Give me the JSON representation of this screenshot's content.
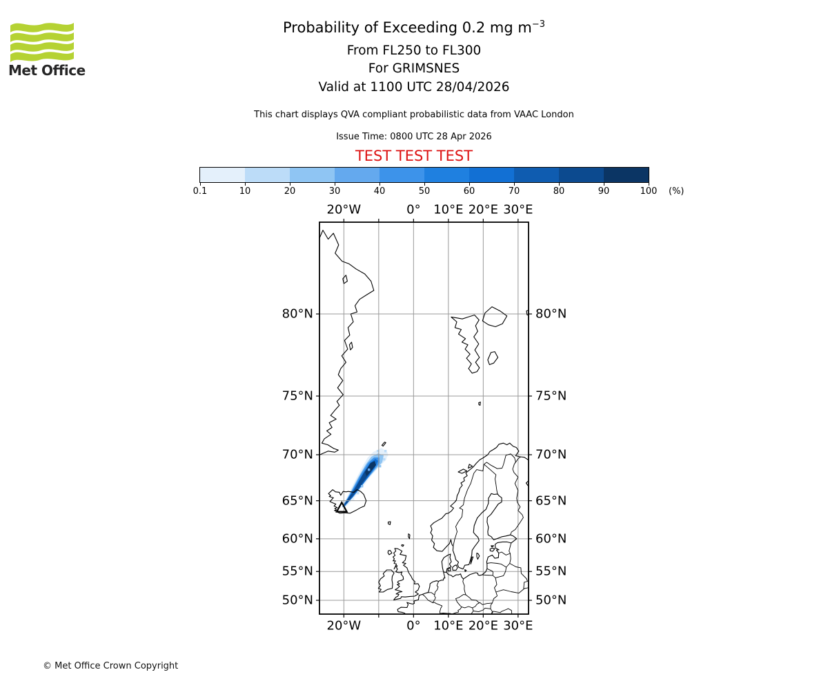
{
  "logo": {
    "brand": "Met Office",
    "green": "#b5d233",
    "text_color": "#262626"
  },
  "header": {
    "title_main": "Probability of Exceeding 0.2 mg m",
    "title_sup": "−3",
    "subtitle_levels": "From FL250 to FL300",
    "subtitle_volcano": "For GRIMSNES",
    "subtitle_valid": "Valid at 1100 UTC 28/04/2026",
    "description": "This chart displays QVA compliant probabilistic data from VAAC London",
    "issue_time": "Issue Time: 0800 UTC 28 Apr 2026",
    "test_banner": "TEST TEST TEST",
    "test_color": "#dd1212"
  },
  "colorbar": {
    "tick_labels": [
      "0.1",
      "10",
      "20",
      "30",
      "40",
      "50",
      "60",
      "70",
      "80",
      "90",
      "100"
    ],
    "unit_label": "(%)",
    "colors": [
      "#e4f0fb",
      "#bcdcf8",
      "#8fc5f3",
      "#64a9ee",
      "#3d93ea",
      "#1f80e0",
      "#1270d4",
      "#0f5cb0",
      "#0c4a8f",
      "#0b3564"
    ]
  },
  "map": {
    "projection": "Mercator",
    "lon_labels": [
      "20°W",
      "0°",
      "10°E",
      "20°E",
      "30°E"
    ],
    "lat_labels": [
      "80°N",
      "75°N",
      "70°N",
      "65°N",
      "60°N",
      "55°N",
      "50°N"
    ],
    "gridline_lons_deg": [
      -20,
      -10,
      0,
      10,
      20,
      30
    ],
    "gridline_lats_deg": [
      50,
      55,
      60,
      65,
      70,
      75,
      80
    ],
    "gridline_color": "#999999",
    "coastline_color": "#000000",
    "volcano": {
      "name": "GRIMSNES",
      "marker": "open-triangle",
      "lon_deg": -20.6,
      "lat_deg": 64.2
    },
    "plume": {
      "description": "Ash exceedance probability plume extending northeast from the volcano over Iceland",
      "from": {
        "lon_deg": -20.6,
        "lat_deg": 64.2
      },
      "to": {
        "lon_deg": -11.0,
        "lat_deg": 69.8
      },
      "max_percent_band": "90-100"
    }
  },
  "footer": {
    "copyright": "© Met Office Crown Copyright"
  }
}
